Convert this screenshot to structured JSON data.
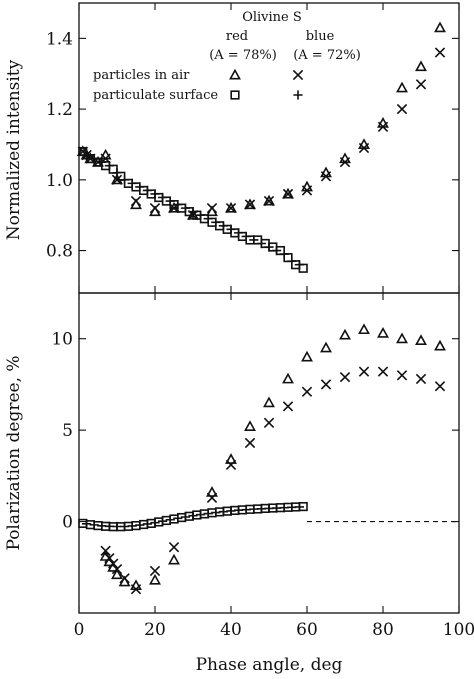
{
  "chart_data": [
    {
      "type": "scatter",
      "panel": "top",
      "ylabel": "Normalized intensity",
      "xlim": [
        0,
        100
      ],
      "ylim": [
        0.68,
        1.5
      ],
      "yticks": [
        0.8,
        1.0,
        1.2,
        1.4
      ],
      "legend": {
        "title": "Olivine S",
        "col_headers": [
          "red\n(A = 78%)",
          "blue\n(A = 72%)"
        ],
        "col_headers_lines": [
          [
            "red",
            "(A = 78%)"
          ],
          [
            "blue",
            "(A = 72%)"
          ]
        ],
        "rows": [
          "particles in air",
          "particulate surface"
        ],
        "placement": "top"
      },
      "series": [
        {
          "name": "particles in air, red",
          "marker": "triangle",
          "x": [
            1,
            2,
            3,
            5,
            7,
            10,
            15,
            20,
            25,
            30,
            35,
            40,
            45,
            50,
            55,
            60,
            65,
            70,
            75,
            80,
            85,
            90,
            95
          ],
          "y": [
            1.08,
            1.07,
            1.06,
            1.05,
            1.07,
            1.0,
            0.93,
            0.91,
            0.92,
            0.9,
            0.91,
            0.92,
            0.93,
            0.94,
            0.96,
            0.98,
            1.02,
            1.06,
            1.1,
            1.16,
            1.26,
            1.32,
            1.43
          ]
        },
        {
          "name": "particles in air, blue",
          "marker": "x",
          "x": [
            1,
            2,
            3,
            5,
            7,
            10,
            15,
            20,
            25,
            30,
            35,
            40,
            45,
            50,
            55,
            60,
            65,
            70,
            75,
            80,
            85,
            90,
            95
          ],
          "y": [
            1.08,
            1.07,
            1.06,
            1.05,
            1.06,
            1.0,
            0.94,
            0.92,
            0.92,
            0.9,
            0.92,
            0.92,
            0.93,
            0.94,
            0.96,
            0.97,
            1.01,
            1.05,
            1.09,
            1.15,
            1.2,
            1.27,
            1.36
          ]
        },
        {
          "name": "particulate surface, red",
          "marker": "square",
          "x": [
            1,
            3,
            5,
            7,
            9,
            11,
            13,
            15,
            17,
            19,
            21,
            23,
            25,
            27,
            29,
            31,
            33,
            35,
            37,
            39,
            41,
            43,
            45,
            47,
            49,
            51,
            53,
            55,
            57,
            59
          ],
          "y": [
            1.08,
            1.06,
            1.05,
            1.04,
            1.03,
            1.01,
            0.99,
            0.98,
            0.97,
            0.96,
            0.95,
            0.94,
            0.93,
            0.92,
            0.91,
            0.9,
            0.89,
            0.88,
            0.87,
            0.86,
            0.85,
            0.84,
            0.83,
            0.83,
            0.82,
            0.81,
            0.8,
            0.78,
            0.76,
            0.75
          ]
        },
        {
          "name": "particulate surface, blue",
          "marker": "plus",
          "x": [
            2,
            4,
            6,
            8,
            10,
            12,
            14,
            16,
            18,
            20,
            22,
            24,
            26,
            28,
            30,
            32,
            34,
            36,
            38,
            40,
            42,
            44,
            46,
            48,
            50,
            52,
            54,
            56,
            58
          ],
          "y": [
            1.07,
            1.06,
            1.05,
            1.04,
            1.02,
            1.0,
            0.99,
            0.98,
            0.97,
            0.96,
            0.95,
            0.94,
            0.93,
            0.92,
            0.91,
            0.9,
            0.89,
            0.88,
            0.87,
            0.86,
            0.85,
            0.84,
            0.83,
            0.82,
            0.81,
            0.8,
            0.79,
            0.77,
            0.76
          ]
        }
      ]
    },
    {
      "type": "scatter",
      "panel": "bottom",
      "xlabel": "Phase angle, deg",
      "ylabel": "Polarization degree, %",
      "xlim": [
        0,
        100
      ],
      "ylim": [
        -5.0,
        12.5
      ],
      "xticks": [
        0,
        20,
        40,
        60,
        80,
        100
      ],
      "yticks": [
        0,
        5,
        10
      ],
      "reference_line": {
        "y": 0,
        "style": "dashed",
        "x_from": 60,
        "x_to": 100
      },
      "series": [
        {
          "name": "particles in air, red",
          "marker": "triangle",
          "x": [
            7,
            8,
            9,
            10,
            12,
            15,
            20,
            25,
            35,
            40,
            45,
            50,
            55,
            60,
            65,
            70,
            75,
            80,
            85,
            90,
            95
          ],
          "y": [
            -1.9,
            -2.2,
            -2.5,
            -2.9,
            -3.3,
            -3.5,
            -3.2,
            -2.1,
            1.6,
            3.4,
            5.2,
            6.5,
            7.8,
            9.0,
            9.5,
            10.2,
            10.5,
            10.3,
            10.0,
            9.9,
            9.6
          ]
        },
        {
          "name": "particles in air, blue",
          "marker": "x",
          "x": [
            7,
            8,
            9,
            10,
            12,
            15,
            20,
            25,
            35,
            40,
            45,
            50,
            55,
            60,
            65,
            70,
            75,
            80,
            85,
            90,
            95
          ],
          "y": [
            -1.6,
            -2.0,
            -2.3,
            -2.6,
            -3.1,
            -3.7,
            -2.7,
            -1.4,
            1.3,
            3.1,
            4.3,
            5.4,
            6.3,
            7.1,
            7.5,
            7.9,
            8.2,
            8.2,
            8.0,
            7.8,
            7.4
          ]
        },
        {
          "name": "particulate surface, red",
          "marker": "square",
          "x": [
            1,
            3,
            5,
            7,
            9,
            11,
            13,
            15,
            17,
            19,
            21,
            23,
            25,
            27,
            29,
            31,
            33,
            35,
            37,
            39,
            41,
            43,
            45,
            47,
            49,
            51,
            53,
            55,
            57,
            59
          ],
          "y": [
            -0.1,
            -0.17,
            -0.22,
            -0.26,
            -0.28,
            -0.28,
            -0.26,
            -0.22,
            -0.16,
            -0.1,
            -0.02,
            0.06,
            0.14,
            0.22,
            0.29,
            0.36,
            0.42,
            0.48,
            0.53,
            0.57,
            0.61,
            0.64,
            0.67,
            0.69,
            0.72,
            0.74,
            0.76,
            0.78,
            0.8,
            0.82
          ]
        },
        {
          "name": "particulate surface, blue",
          "marker": "plus",
          "x": [
            2,
            4,
            6,
            8,
            10,
            12,
            14,
            16,
            18,
            20,
            22,
            24,
            26,
            28,
            30,
            32,
            34,
            36,
            38,
            40,
            42,
            44,
            46,
            48,
            50,
            52,
            54,
            56,
            58
          ],
          "y": [
            -0.12,
            -0.18,
            -0.23,
            -0.26,
            -0.27,
            -0.27,
            -0.24,
            -0.19,
            -0.13,
            -0.06,
            0.02,
            0.1,
            0.18,
            0.25,
            0.32,
            0.38,
            0.44,
            0.49,
            0.54,
            0.58,
            0.62,
            0.65,
            0.68,
            0.7,
            0.72,
            0.74,
            0.76,
            0.78,
            0.8
          ]
        }
      ]
    }
  ]
}
